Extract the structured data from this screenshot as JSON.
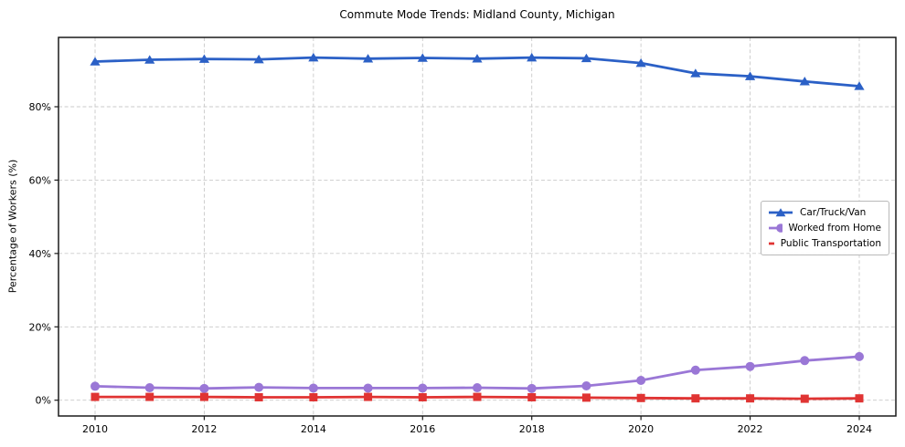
{
  "figure": {
    "background": "#ffffff",
    "border_color": "#1a1a1a",
    "grid_color": "#c9c9c9"
  },
  "chart_data": {
    "type": "line",
    "title": "Commute Mode Trends: Midland County, Michigan",
    "xlabel": "",
    "ylabel": "Percentage of Workers (%)",
    "x": [
      2010,
      2011,
      2012,
      2013,
      2014,
      2015,
      2016,
      2017,
      2018,
      2019,
      2020,
      2021,
      2022,
      2023,
      2024
    ],
    "series": [
      {
        "name": "Car/Truck/Van",
        "color": "#2b60c6",
        "marker": "triangle",
        "values": [
          92.3,
          92.8,
          93.0,
          92.9,
          93.4,
          93.1,
          93.3,
          93.1,
          93.4,
          93.2,
          91.9,
          89.1,
          88.3,
          86.9,
          85.6
        ]
      },
      {
        "name": "Worked from Home",
        "color": "#9a77d6",
        "marker": "circle",
        "values": [
          3.8,
          3.4,
          3.2,
          3.5,
          3.3,
          3.3,
          3.3,
          3.4,
          3.2,
          3.9,
          5.4,
          8.2,
          9.2,
          10.8,
          11.9
        ]
      },
      {
        "name": "Public Transportation",
        "color": "#e03433",
        "marker": "square",
        "values": [
          0.9,
          0.9,
          0.9,
          0.8,
          0.8,
          0.9,
          0.8,
          0.9,
          0.8,
          0.7,
          0.6,
          0.5,
          0.5,
          0.4,
          0.5
        ]
      }
    ],
    "xticks": [
      2010,
      2012,
      2014,
      2016,
      2018,
      2020,
      2022,
      2024
    ],
    "xtick_labels": [
      "2010",
      "2012",
      "2014",
      "2016",
      "2018",
      "2020",
      "2022",
      "2024"
    ],
    "yticks": [
      0,
      20,
      40,
      60,
      80
    ],
    "ytick_labels": [
      "0%",
      "20%",
      "40%",
      "60%",
      "80%"
    ],
    "xlim": [
      2009.33,
      2024.67
    ],
    "ylim": [
      -4.3,
      98.9
    ],
    "grid": true,
    "grid_style": "dashed",
    "legend_position": "center-right"
  }
}
